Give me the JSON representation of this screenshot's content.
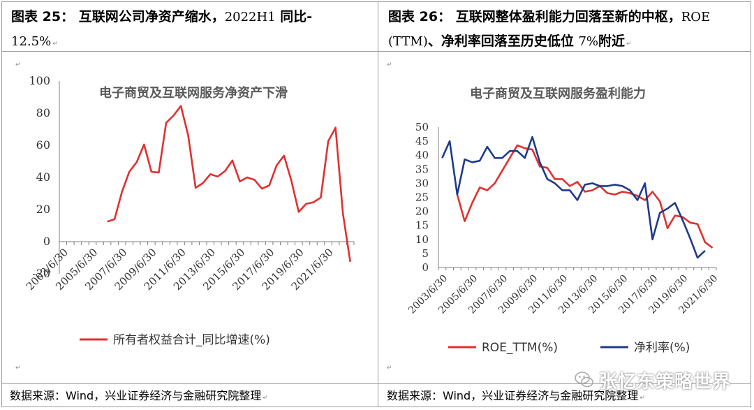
{
  "left_panel": {
    "title_prefix": "图表 25：",
    "title_main": "互联网公司净资产缩水，",
    "title_serif": "2022H1",
    "title_tail": "同比-",
    "title_line2": "12.5%",
    "source": "数据来源：Wind，兴业证券经济与金融研究院整理"
  },
  "right_panel": {
    "title_prefix": "图表 26：",
    "title_main": "互联网整体盈利能力回落至新的中枢，",
    "title_serif": "ROE",
    "title_line2_serif": "(TTM)",
    "title_line2_main": "、净利率回落至历史低位",
    "title_line2_serif2": "7%",
    "title_line2_tail": "附近",
    "source": "数据来源：Wind，兴业证券经济与金融研究院整理"
  },
  "watermark": {
    "text": "张忆东策略世界",
    "logo": "wechat-logo-icon"
  },
  "colors": {
    "red": "#e03030",
    "blue": "#1f3a8a",
    "axis": "#7f7f7f",
    "title_gray": "#595959"
  },
  "chart_data": [
    {
      "type": "line",
      "title": "电子商贸及互联网服务净资产下滑",
      "xlabel": "",
      "ylabel": "",
      "ylim": [
        -20,
        100
      ],
      "yticks": [
        100,
        80,
        60,
        40,
        20,
        0,
        -20
      ],
      "xticks": [
        "2003/6/30",
        "2005/6/30",
        "2007/6/30",
        "2009/6/30",
        "2011/6/30",
        "2013/6/30",
        "2015/6/30",
        "2017/6/30",
        "2019/6/30",
        "2021/6/30"
      ],
      "x_step": "half-year",
      "x_start": "2003/6/30",
      "grid": false,
      "legend_position": "bottom",
      "series": [
        {
          "name": "所有者权益合计_同比增速(%)",
          "color": "#e03030",
          "start_index": 6,
          "values": [
            12.5,
            14,
            31,
            43.5,
            49.5,
            60.5,
            43.5,
            43,
            74,
            78.5,
            84.5,
            66,
            33.5,
            36.5,
            42,
            40.5,
            44,
            50.5,
            37.5,
            40,
            38.5,
            33,
            35,
            47.5,
            53.5,
            38,
            18.5,
            23.5,
            24.5,
            27.5,
            62.5,
            71,
            17.5,
            -12.5
          ]
        }
      ]
    },
    {
      "type": "line",
      "title": "电子商贸及互联网服务盈利能力",
      "xlabel": "",
      "ylabel": "",
      "ylim": [
        0,
        50
      ],
      "yticks": [
        50,
        45,
        40,
        35,
        30,
        25,
        20,
        15,
        10,
        5,
        0
      ],
      "xticks": [
        "2003/6/30",
        "2005/6/30",
        "2007/6/30",
        "2009/6/30",
        "2011/6/30",
        "2013/6/30",
        "2015/6/30",
        "2017/6/30",
        "2019/6/30",
        "2021/6/30"
      ],
      "x_step": "half-year",
      "x_start": "2003/6/30",
      "grid": false,
      "legend_position": "bottom",
      "series": [
        {
          "name": "ROE_TTM(%)",
          "color": "#e03030",
          "start_index": 2,
          "values": [
            26,
            16.5,
            23,
            28.5,
            27.5,
            30,
            34.5,
            39,
            43.5,
            42.5,
            42,
            36,
            35.5,
            31.5,
            31.5,
            29,
            30.5,
            27,
            27.5,
            29,
            26.5,
            26,
            27,
            26.5,
            25.5,
            24,
            27,
            23.5,
            14,
            18.5,
            18,
            16,
            15.5,
            9,
            7
          ]
        },
        {
          "name": "净利率(%)",
          "color": "#1f3a8a",
          "start_index": 0,
          "values": [
            39,
            45,
            26,
            38.5,
            37.5,
            38,
            43,
            39,
            39,
            41.5,
            41.5,
            39,
            46.5,
            37.5,
            31.5,
            30,
            27.5,
            27.5,
            24,
            29.5,
            30,
            29,
            29,
            29.5,
            29,
            27.5,
            24,
            30,
            10,
            19.5,
            21,
            23,
            17,
            10.5,
            3.5,
            6
          ]
        }
      ]
    }
  ]
}
